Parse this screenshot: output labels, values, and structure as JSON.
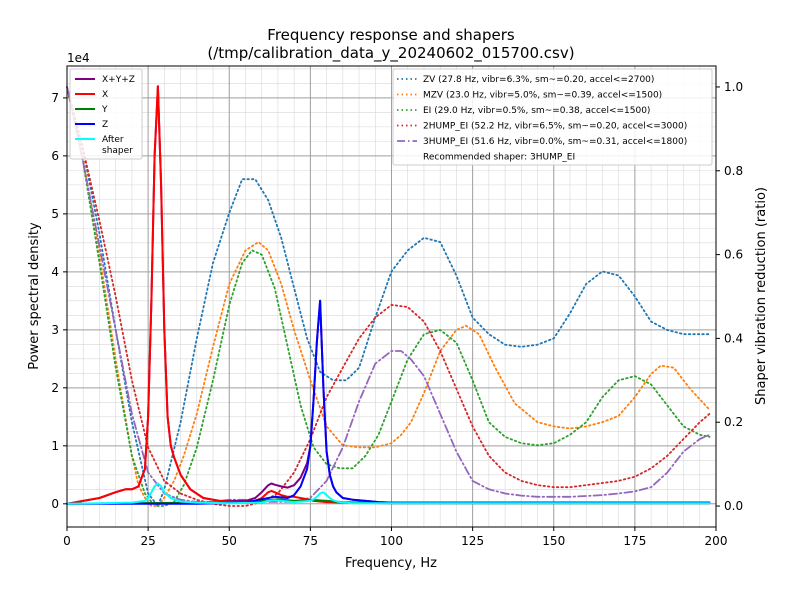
{
  "chart_data": {
    "type": "line",
    "title": "Frequency response and shapers",
    "subtitle": "(/tmp/calibration_data_y_20240602_015700.csv)",
    "xlabel": "Frequency, Hz",
    "ylabel": "Power spectral density",
    "y2label": "Shaper vibration reduction (ratio)",
    "y_exponent_label": "1e4",
    "xlim": [
      0,
      200
    ],
    "ylim": [
      -0.4,
      7.55
    ],
    "y2lim": [
      -0.05,
      1.05
    ],
    "grid": true,
    "x_ticks": [
      0,
      25,
      50,
      75,
      100,
      125,
      150,
      175,
      200
    ],
    "y_ticks": [
      0,
      1,
      2,
      3,
      4,
      5,
      6,
      7
    ],
    "y2_ticks": [
      "0.0",
      "0.2",
      "0.4",
      "0.6",
      "0.8",
      "1.0"
    ],
    "legend_left": [
      {
        "name": "X+Y+Z",
        "color": "#800080"
      },
      {
        "name": "X",
        "color": "#ff0000"
      },
      {
        "name": "Y",
        "color": "#008000"
      },
      {
        "name": "Z",
        "color": "#0000ff"
      },
      {
        "name": "After shaper",
        "color": "#00ffff"
      }
    ],
    "legend_right": [
      {
        "name": "ZV (27.8 Hz, vibr=6.3%, sm~=0.20, accel<=2700)",
        "color": "#1f77b4",
        "style": "dotted"
      },
      {
        "name": "MZV (23.0 Hz, vibr=5.0%, sm~=0.39, accel<=1500)",
        "color": "#ff7f0e",
        "style": "dotted"
      },
      {
        "name": "EI (29.0 Hz, vibr=0.5%, sm~=0.38, accel<=1500)",
        "color": "#2ca02c",
        "style": "dotted"
      },
      {
        "name": "2HUMP_EI (52.2 Hz, vibr=6.5%, sm~=0.20, accel<=3000)",
        "color": "#d62728",
        "style": "dotted"
      },
      {
        "name": "3HUMP_EI (51.6 Hz, vibr=0.0%, sm~=0.31, accel<=1800)",
        "color": "#9467bd",
        "style": "dashdot"
      }
    ],
    "recommended_text": "Recommended shaper: 3HUMP_EI",
    "series": [
      {
        "name": "X+Y+Z",
        "axis": "left",
        "color": "#800080",
        "x": [
          0,
          5,
          10,
          15,
          18,
          20,
          22,
          24,
          25,
          26,
          27,
          28,
          29,
          30,
          31,
          32,
          33,
          35,
          38,
          42,
          47,
          52,
          55,
          58,
          60,
          62,
          63,
          64,
          66,
          68,
          70,
          72,
          74,
          75,
          76,
          77,
          78,
          79,
          80,
          81,
          82,
          83,
          85,
          88,
          92,
          96,
          100,
          110,
          125,
          150,
          175,
          198
        ],
        "y": [
          0,
          0.05,
          0.1,
          0.2,
          0.25,
          0.25,
          0.3,
          0.6,
          1.5,
          3.5,
          6.0,
          7.2,
          5.5,
          3.0,
          1.5,
          1.0,
          0.8,
          0.5,
          0.25,
          0.1,
          0.05,
          0.05,
          0.05,
          0.1,
          0.2,
          0.32,
          0.35,
          0.33,
          0.3,
          0.28,
          0.32,
          0.45,
          0.7,
          1.0,
          1.8,
          2.8,
          3.5,
          2.0,
          0.9,
          0.5,
          0.3,
          0.2,
          0.1,
          0.07,
          0.05,
          0.03,
          0.02,
          0.02,
          0.02,
          0.02,
          0.02,
          0.02
        ]
      },
      {
        "name": "X",
        "axis": "left",
        "color": "#ff0000",
        "x": [
          0,
          5,
          10,
          15,
          18,
          20,
          22,
          24,
          25,
          26,
          27,
          28,
          29,
          30,
          31,
          32,
          33,
          35,
          38,
          42,
          47,
          52,
          55,
          58,
          60,
          62,
          63,
          64,
          66,
          68,
          70,
          72,
          74,
          76,
          80,
          85,
          100,
          198
        ],
        "y": [
          0,
          0.05,
          0.1,
          0.2,
          0.25,
          0.25,
          0.3,
          0.6,
          1.5,
          3.5,
          6.0,
          7.2,
          5.5,
          3.0,
          1.5,
          1.0,
          0.8,
          0.5,
          0.25,
          0.1,
          0.05,
          0.03,
          0.03,
          0.05,
          0.1,
          0.2,
          0.22,
          0.2,
          0.15,
          0.12,
          0.12,
          0.1,
          0.08,
          0.05,
          0.03,
          0.02,
          0.01,
          0.01
        ]
      },
      {
        "name": "Y",
        "axis": "left",
        "color": "#008000",
        "x": [
          0,
          20,
          40,
          55,
          60,
          65,
          70,
          75,
          80,
          85,
          90,
          100,
          198
        ],
        "y": [
          0,
          0.01,
          0.02,
          0.02,
          0.05,
          0.08,
          0.05,
          0.07,
          0.05,
          0.03,
          0.02,
          0.01,
          0.01
        ]
      },
      {
        "name": "Z",
        "axis": "left",
        "color": "#0000ff",
        "x": [
          0,
          20,
          40,
          55,
          60,
          64,
          68,
          70,
          72,
          74,
          75,
          76,
          77,
          78,
          79,
          80,
          81,
          82,
          83,
          85,
          88,
          92,
          96,
          100,
          198
        ],
        "y": [
          0,
          0,
          0,
          0.02,
          0.08,
          0.12,
          0.1,
          0.15,
          0.3,
          0.6,
          1.0,
          1.8,
          2.8,
          3.5,
          2.0,
          0.9,
          0.5,
          0.3,
          0.2,
          0.1,
          0.07,
          0.05,
          0.03,
          0.02,
          0.02
        ]
      },
      {
        "name": "After shaper",
        "axis": "left",
        "color": "#00ffff",
        "x": [
          0,
          10,
          20,
          24,
          25,
          26,
          27,
          28,
          29,
          30,
          32,
          35,
          40,
          50,
          60,
          62,
          64,
          66,
          70,
          75,
          76,
          77,
          78,
          79,
          80,
          81,
          82,
          84,
          88,
          100,
          198
        ],
        "y": [
          0,
          0.01,
          0.02,
          0.05,
          0.1,
          0.2,
          0.3,
          0.35,
          0.3,
          0.2,
          0.1,
          0.04,
          0.02,
          0.01,
          0.02,
          0.05,
          0.06,
          0.05,
          0.03,
          0.05,
          0.08,
          0.12,
          0.18,
          0.2,
          0.15,
          0.1,
          0.06,
          0.03,
          0.01,
          0.01,
          0.01
        ]
      },
      {
        "name": "ZV",
        "axis": "right",
        "color": "#1f77b4",
        "style": "dotted",
        "x": [
          0,
          5,
          10,
          15,
          20,
          25,
          28,
          30,
          35,
          40,
          45,
          50,
          54,
          58,
          62,
          66,
          70,
          74,
          78,
          82,
          86,
          90,
          95,
          100,
          105,
          110,
          115,
          120,
          125,
          130,
          135,
          140,
          145,
          150,
          155,
          160,
          165,
          170,
          175,
          180,
          185,
          190,
          195,
          198
        ],
        "y": [
          1.0,
          0.85,
          0.65,
          0.42,
          0.2,
          0.03,
          0.0,
          0.04,
          0.2,
          0.4,
          0.58,
          0.7,
          0.78,
          0.78,
          0.73,
          0.64,
          0.52,
          0.4,
          0.32,
          0.3,
          0.3,
          0.33,
          0.45,
          0.56,
          0.61,
          0.64,
          0.63,
          0.55,
          0.45,
          0.41,
          0.385,
          0.38,
          0.385,
          0.4,
          0.46,
          0.53,
          0.56,
          0.55,
          0.5,
          0.44,
          0.42,
          0.41,
          0.41,
          0.41
        ]
      },
      {
        "name": "MZV",
        "axis": "right",
        "color": "#ff7f0e",
        "style": "dotted",
        "x": [
          0,
          5,
          10,
          15,
          20,
          22,
          24,
          26,
          28,
          30,
          33,
          36,
          40,
          45,
          50,
          55,
          59,
          62,
          66,
          70,
          75,
          80,
          85,
          90,
          95,
          100,
          103,
          106,
          110,
          115,
          120,
          123,
          127,
          132,
          138,
          145,
          150,
          155,
          160,
          165,
          170,
          175,
          180,
          183,
          187,
          192,
          198
        ],
        "y": [
          1.0,
          0.83,
          0.6,
          0.35,
          0.12,
          0.05,
          0.02,
          0.0,
          0.0,
          0.02,
          0.06,
          0.12,
          0.22,
          0.38,
          0.53,
          0.61,
          0.63,
          0.61,
          0.53,
          0.42,
          0.3,
          0.19,
          0.145,
          0.14,
          0.14,
          0.15,
          0.17,
          0.2,
          0.27,
          0.37,
          0.42,
          0.43,
          0.41,
          0.33,
          0.245,
          0.2,
          0.19,
          0.185,
          0.19,
          0.2,
          0.215,
          0.26,
          0.315,
          0.335,
          0.33,
          0.28,
          0.23
        ]
      },
      {
        "name": "EI",
        "axis": "right",
        "color": "#2ca02c",
        "style": "dotted",
        "x": [
          0,
          5,
          10,
          15,
          20,
          24,
          26,
          28,
          30,
          33,
          36,
          40,
          45,
          50,
          54,
          57,
          60,
          64,
          68,
          72,
          76,
          80,
          84,
          88,
          92,
          96,
          100,
          105,
          110,
          115,
          120,
          125,
          130,
          135,
          140,
          145,
          150,
          155,
          160,
          165,
          170,
          175,
          180,
          185,
          190,
          195,
          198
        ],
        "y": [
          1.0,
          0.82,
          0.58,
          0.33,
          0.12,
          0.03,
          0.01,
          0.0,
          0.0,
          0.01,
          0.05,
          0.14,
          0.3,
          0.48,
          0.58,
          0.61,
          0.6,
          0.52,
          0.38,
          0.24,
          0.14,
          0.1,
          0.09,
          0.09,
          0.12,
          0.17,
          0.25,
          0.35,
          0.41,
          0.42,
          0.39,
          0.3,
          0.2,
          0.165,
          0.15,
          0.145,
          0.15,
          0.17,
          0.2,
          0.26,
          0.3,
          0.31,
          0.29,
          0.24,
          0.19,
          0.17,
          0.165
        ]
      },
      {
        "name": "2HUMP_EI",
        "axis": "right",
        "color": "#d62728",
        "style": "dotted",
        "x": [
          0,
          5,
          10,
          15,
          20,
          25,
          30,
          35,
          40,
          45,
          50,
          55,
          60,
          65,
          70,
          75,
          80,
          85,
          90,
          95,
          100,
          105,
          110,
          115,
          120,
          125,
          130,
          135,
          140,
          145,
          150,
          155,
          160,
          165,
          170,
          175,
          180,
          185,
          190,
          195,
          198
        ],
        "y": [
          1.0,
          0.85,
          0.68,
          0.5,
          0.3,
          0.14,
          0.06,
          0.03,
          0.015,
          0.005,
          0.0,
          0.0,
          0.01,
          0.03,
          0.08,
          0.16,
          0.26,
          0.33,
          0.4,
          0.45,
          0.48,
          0.475,
          0.44,
          0.37,
          0.28,
          0.19,
          0.12,
          0.08,
          0.06,
          0.05,
          0.045,
          0.045,
          0.05,
          0.055,
          0.06,
          0.07,
          0.09,
          0.12,
          0.16,
          0.2,
          0.22
        ]
      },
      {
        "name": "3HUMP_EI",
        "axis": "right",
        "color": "#9467bd",
        "style": "dashdot",
        "x": [
          0,
          5,
          10,
          15,
          20,
          25,
          30,
          35,
          40,
          45,
          50,
          55,
          60,
          65,
          70,
          75,
          80,
          85,
          90,
          95,
          100,
          103,
          106,
          110,
          115,
          120,
          125,
          130,
          135,
          140,
          145,
          150,
          155,
          160,
          165,
          170,
          175,
          180,
          185,
          190,
          195,
          198
        ],
        "y": [
          1.0,
          0.82,
          0.62,
          0.42,
          0.22,
          0.08,
          0.03,
          0.015,
          0.01,
          0.01,
          0.015,
          0.015,
          0.01,
          0.01,
          0.01,
          0.02,
          0.06,
          0.14,
          0.25,
          0.34,
          0.37,
          0.37,
          0.35,
          0.31,
          0.22,
          0.13,
          0.06,
          0.04,
          0.03,
          0.025,
          0.022,
          0.022,
          0.022,
          0.024,
          0.026,
          0.03,
          0.035,
          0.045,
          0.08,
          0.13,
          0.16,
          0.17
        ]
      }
    ]
  }
}
